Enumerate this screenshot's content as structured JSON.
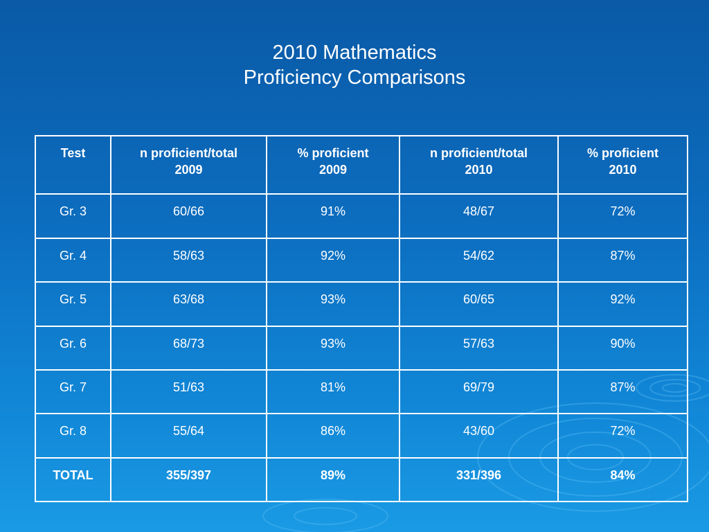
{
  "title": {
    "line1": "2010 Mathematics",
    "line2": "Proficiency Comparisons"
  },
  "table": {
    "headers": [
      [
        "Test",
        ""
      ],
      [
        "n proficient/total",
        "2009"
      ],
      [
        "% proficient",
        "2009"
      ],
      [
        "n proficient/total",
        "2010"
      ],
      [
        "% proficient",
        "2010"
      ]
    ],
    "rows": [
      [
        "Gr. 3",
        "60/66",
        "91%",
        "48/67",
        "72%"
      ],
      [
        "Gr. 4",
        "58/63",
        "92%",
        "54/62",
        "87%"
      ],
      [
        "Gr. 5",
        "63/68",
        "93%",
        "60/65",
        "92%"
      ],
      [
        "Gr. 6",
        "68/73",
        "93%",
        "57/63",
        "90%"
      ],
      [
        "Gr. 7",
        "51/63",
        "81%",
        "69/79",
        "87%"
      ],
      [
        "Gr. 8",
        "55/64",
        "86%",
        "43/60",
        "72%"
      ]
    ],
    "total": [
      "TOTAL",
      "355/397",
      "89%",
      "331/396",
      "84%"
    ]
  },
  "colors": {
    "background_top": "#0a5aa6",
    "background_bottom": "#1a9ae4",
    "text": "#ffffff",
    "grid": "#ffffff"
  }
}
